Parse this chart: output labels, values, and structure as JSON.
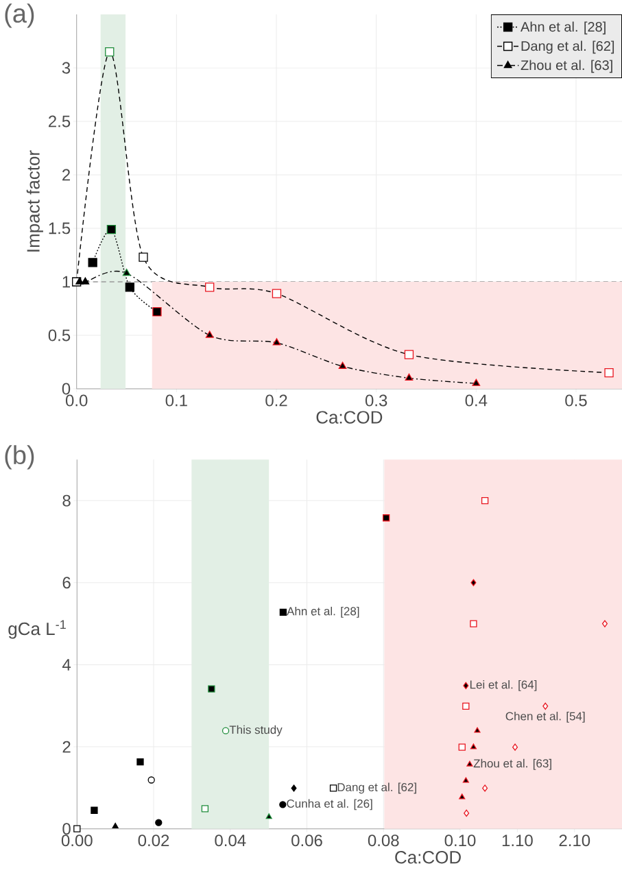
{
  "chart_data": [
    {
      "type": "line",
      "title": "(a)",
      "xlabel": "Ca:COD",
      "ylabel": "Impact factor",
      "xlim": [
        0,
        0.546
      ],
      "ylim": [
        0,
        3.5
      ],
      "xticks": [
        {
          "value": 0,
          "label": "0.0"
        },
        0.1,
        0.2,
        0.3,
        0.4,
        0.5
      ],
      "yticks": [
        0,
        0.5,
        1,
        1.5,
        2,
        2.5,
        3
      ],
      "grid": true,
      "legend": "top right",
      "ref_lines": [
        {
          "axis": "y",
          "value": 1,
          "color": "#999999",
          "line_style": "dashed"
        }
      ],
      "bands": [
        {
          "axis": "x",
          "from": 0.024,
          "to": 0.049,
          "color": "#e2efe5"
        }
      ],
      "series": [
        {
          "type": "area",
          "color": "#fde4e4",
          "x": [
            0.0755,
            0.546
          ],
          "values": [
            1,
            1
          ]
        },
        {
          "name": "Ahn et al. [28]",
          "color": "#000000",
          "marker": "square",
          "line_style": "dotted",
          "x": [
            0.0161,
            0.0348,
            0.0533,
            0.0805
          ],
          "values": [
            1.18,
            1.49,
            0.95,
            0.72
          ],
          "colors": [
            "#000000",
            "#1e8c3a",
            "#000000",
            "#e8141e"
          ]
        },
        {
          "name": "Dang et al. [62]",
          "marker": "square",
          "line_style": "dashed",
          "x": [
            0,
            0.033,
            0.0668,
            0.1332,
            0.2003,
            0.3328,
            0.533
          ],
          "values": [
            1,
            3.15,
            1.23,
            0.95,
            0.89,
            0.32,
            0.15
          ],
          "colors": [
            "#000000",
            "#1e8c3a",
            "#000000",
            "#e8141e",
            "#e8141e",
            "#e8141e",
            "#e8141e"
          ]
        },
        {
          "name": "Zhou et al. [63]",
          "color": "#000000",
          "marker": "triangle",
          "line_style": "dashdot",
          "x": [
            0.003,
            0.0087,
            0.0501,
            0.1332,
            0.2003,
            0.2663,
            0.3328,
            0.4
          ],
          "values": [
            1,
            1,
            1.08,
            0.5,
            0.43,
            0.21,
            0.1,
            0.05
          ],
          "colors": [
            "#000000",
            "#000000",
            "#1e8c3a",
            "#e8141e",
            "#e8141e",
            "#e8141e",
            "#e8141e",
            "#e8141e"
          ]
        }
      ]
    },
    {
      "type": "scatter",
      "title": "(b)",
      "xlabel": "Ca:COD",
      "ylabel": "gCa L$^{-1}$",
      "xlim": [
        0,
        0.1
      ],
      "ylim": [
        0,
        9
      ],
      "xticks": [
        {
          "value": 0,
          "label": "0.00"
        },
        {
          "value": 0.02,
          "label": "0.02"
        },
        {
          "value": 0.04,
          "label": "0.04"
        },
        {
          "value": 0.06,
          "label": "0.06"
        },
        {
          "value": 0.08,
          "label": "0.08"
        },
        {
          "value": 0.1,
          "label": "0.10"
        }
      ],
      "yticks": [
        0,
        2,
        4,
        6,
        8
      ],
      "grid": true,
      "bands": [
        {
          "axis": "x",
          "from": 0.0299,
          "to": 0.0501,
          "color": "#e2efe5"
        },
        {
          "axis": "x",
          "from": 0.0802,
          "to": 0.1,
          "color": "#fde4e4"
        }
      ],
      "annotations": [
        {
          "text": "Ahn et al. [28]",
          "x": 0.0538,
          "y": 5.28
        },
        {
          "text": "This study",
          "x": 0.0388,
          "y": 2.39
        },
        {
          "text": "Dang et al. [62]",
          "x": 0.0669,
          "y": 0.99
        },
        {
          "text": "Cunha et al. [26]",
          "x": 0.0537,
          "y": 0.59
        }
      ],
      "series": [
        {
          "color": "#000000",
          "marker": "square",
          "x": [
            0.0045,
            0.0165,
            0.0538
          ],
          "values": [
            0.45,
            1.63,
            5.28
          ]
        },
        {
          "color": "#000000",
          "colors": [
            "#1e8c3a"
          ],
          "marker": "square",
          "x": [
            0.0351
          ],
          "values": [
            3.41
          ]
        },
        {
          "color": "#000000",
          "colors": [
            "#e8141e"
          ],
          "marker": "square",
          "x": [
            0.0807
          ],
          "values": [
            7.58
          ]
        },
        {
          "colors": [
            "#000000",
            "#000000"
          ],
          "marker": "square",
          "x": [
            0,
            0.0669
          ],
          "values": [
            0,
            0.99
          ]
        },
        {
          "colors": [
            "#1e8c3a"
          ],
          "marker": "square",
          "x": [
            0.0334
          ],
          "values": [
            0.49
          ]
        },
        {
          "color": "#000000",
          "marker": "triangle",
          "x": [
            0.01
          ],
          "values": [
            0.06
          ]
        },
        {
          "color": "#000000",
          "colors": [
            "#1e8c3a"
          ],
          "marker": "triangle",
          "x": [
            0.0501
          ],
          "values": [
            0.29
          ]
        },
        {
          "color": "#000000",
          "marker": "circle",
          "x": [
            0.0213,
            0.0537
          ],
          "values": [
            0.15,
            0.59
          ]
        },
        {
          "colors": [
            "#000000"
          ],
          "marker": "circle",
          "x": [
            0.0194
          ],
          "values": [
            1.19
          ]
        },
        {
          "colors": [
            "#1e8c3a"
          ],
          "marker": "circle",
          "x": [
            0.0388
          ],
          "values": [
            2.39
          ]
        },
        {
          "color": "#000000",
          "marker": "diamond",
          "x": [
            0.0566
          ],
          "values": [
            0.99
          ]
        }
      ]
    },
    {
      "type": "scatter",
      "xlim": [
        0.1,
        2.93
      ],
      "ylim": [
        0,
        9
      ],
      "xticks": [
        {
          "value": 1.1,
          "label": "1.10"
        },
        {
          "value": 2.1,
          "label": "2.10"
        }
      ],
      "yticks": [
        0,
        2,
        4,
        6,
        8
      ],
      "grid": true,
      "tick_labels": "x",
      "bands": [
        {
          "axis": "x",
          "from": 0.1,
          "to": 2.93,
          "color": "#fde4e4"
        }
      ],
      "annotations": [
        {
          "text": "Lei et al. [64]",
          "x": 0.2,
          "y": 3.49
        },
        {
          "text": "Chen et al. [54]",
          "x": 1.59,
          "y": 2.99
        },
        {
          "text": "Zhou et al. [63]",
          "x": 0.267,
          "y": 1.57
        }
      ],
      "series": [
        {
          "colors": [
            "#e8141e",
            "#e8141e",
            "#e8141e",
            "#e8141e"
          ],
          "marker": "square",
          "x": [
            0.533,
            0.333,
            0.2,
            0.133
          ],
          "values": [
            8,
            5,
            2.99,
            1.99
          ]
        },
        {
          "color": "#000000",
          "colors": [
            "#e8141e",
            "#e8141e",
            "#e8141e",
            "#e8141e",
            "#e8141e"
          ],
          "marker": "triangle",
          "x": [
            0.4,
            0.333,
            0.267,
            0.2,
            0.133
          ],
          "values": [
            2.39,
            1.99,
            1.57,
            1.17,
            0.77
          ]
        },
        {
          "color": "#000000",
          "colors": [
            "#e8141e",
            "#e8141e"
          ],
          "marker": "diamond",
          "x": [
            0.333,
            0.2
          ],
          "values": [
            6,
            3.49
          ]
        },
        {
          "colors": [
            "#e8141e",
            "#e8141e",
            "#e8141e",
            "#e8141e",
            "#e8141e"
          ],
          "marker": "diamond",
          "x": [
            2.63,
            1.59,
            1.06,
            0.533,
            0.21
          ],
          "values": [
            5,
            2.99,
            1.99,
            0.99,
            0.38
          ]
        }
      ]
    }
  ]
}
